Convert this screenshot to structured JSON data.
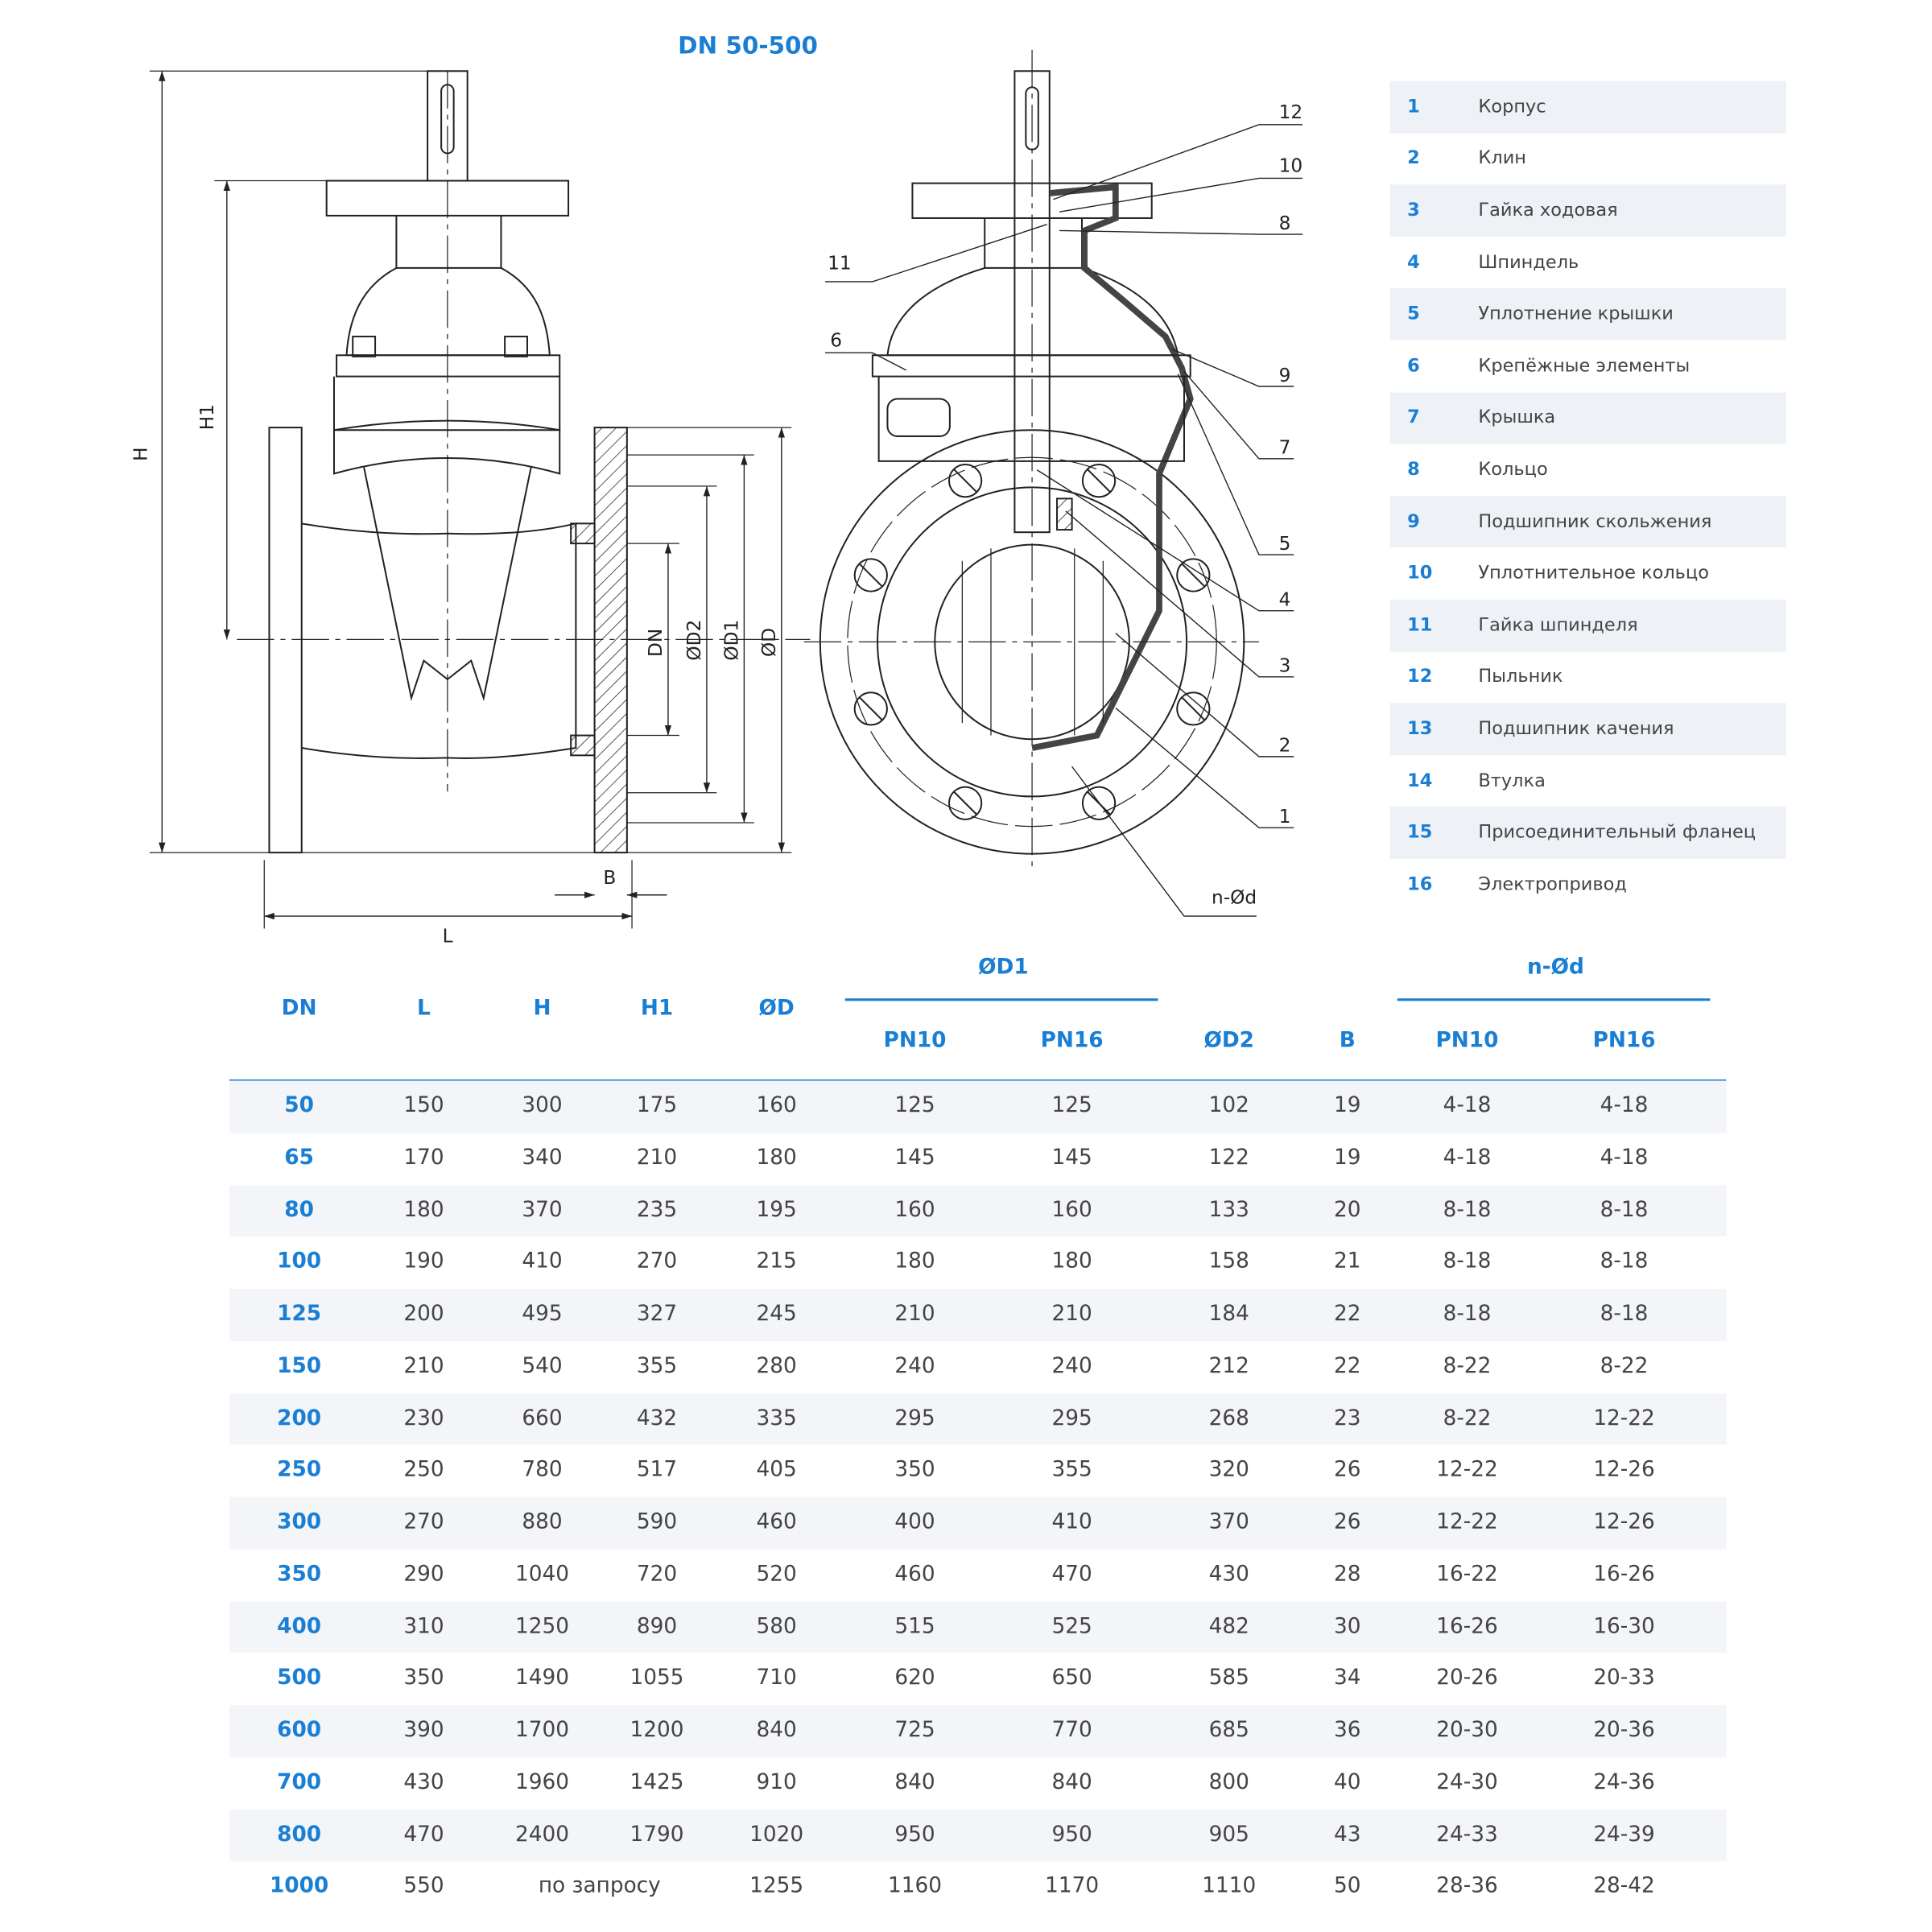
{
  "title": "DN 50-500",
  "parts": [
    {
      "num": "1",
      "name": "Корпус"
    },
    {
      "num": "2",
      "name": "Клин"
    },
    {
      "num": "3",
      "name": "Гайка ходовая"
    },
    {
      "num": "4",
      "name": "Шпиндель"
    },
    {
      "num": "5",
      "name": "Уплотнение крышки"
    },
    {
      "num": "6",
      "name": "Крепёжные элементы"
    },
    {
      "num": "7",
      "name": "Крышка"
    },
    {
      "num": "8",
      "name": "Кольцо"
    },
    {
      "num": "9",
      "name": "Подшипник скольжения"
    },
    {
      "num": "10",
      "name": "Уплотнительное кольцо"
    },
    {
      "num": "11",
      "name": "Гайка шпинделя"
    },
    {
      "num": "12",
      "name": "Пыльник"
    },
    {
      "num": "13",
      "name": "Подшипник качения"
    },
    {
      "num": "14",
      "name": "Втулка"
    },
    {
      "num": "15",
      "name": "Присоединительный фланец"
    },
    {
      "num": "16",
      "name": "Электропривод"
    }
  ],
  "drawing": {
    "dims": {
      "H": "H",
      "H1": "H1",
      "L": "L",
      "B": "B",
      "DN": "DN",
      "D2": "ØD2",
      "D1": "ØD1",
      "D": "ØD",
      "nd": "n-Ød"
    },
    "callouts": [
      "12",
      "10",
      "8",
      "11",
      "6",
      "9",
      "7",
      "5",
      "4",
      "3",
      "2",
      "1"
    ]
  },
  "table": {
    "headers": {
      "dn": "DN",
      "l": "L",
      "h": "H",
      "h1": "H1",
      "d": "ØD",
      "d1": "ØD1",
      "d1_pn10": "PN10",
      "d1_pn16": "PN16",
      "d2": "ØD2",
      "b": "B",
      "nd": "n-Ød",
      "nd_pn10": "PN10",
      "nd_pn16": "PN16"
    },
    "rows": [
      [
        "50",
        "150",
        "300",
        "175",
        "160",
        "125",
        "125",
        "102",
        "19",
        "4-18",
        "4-18"
      ],
      [
        "65",
        "170",
        "340",
        "210",
        "180",
        "145",
        "145",
        "122",
        "19",
        "4-18",
        "4-18"
      ],
      [
        "80",
        "180",
        "370",
        "235",
        "195",
        "160",
        "160",
        "133",
        "20",
        "8-18",
        "8-18"
      ],
      [
        "100",
        "190",
        "410",
        "270",
        "215",
        "180",
        "180",
        "158",
        "21",
        "8-18",
        "8-18"
      ],
      [
        "125",
        "200",
        "495",
        "327",
        "245",
        "210",
        "210",
        "184",
        "22",
        "8-18",
        "8-18"
      ],
      [
        "150",
        "210",
        "540",
        "355",
        "280",
        "240",
        "240",
        "212",
        "22",
        "8-22",
        "8-22"
      ],
      [
        "200",
        "230",
        "660",
        "432",
        "335",
        "295",
        "295",
        "268",
        "23",
        "8-22",
        "12-22"
      ],
      [
        "250",
        "250",
        "780",
        "517",
        "405",
        "350",
        "355",
        "320",
        "26",
        "12-22",
        "12-26"
      ],
      [
        "300",
        "270",
        "880",
        "590",
        "460",
        "400",
        "410",
        "370",
        "26",
        "12-22",
        "12-26"
      ],
      [
        "350",
        "290",
        "1040",
        "720",
        "520",
        "460",
        "470",
        "430",
        "28",
        "16-22",
        "16-26"
      ],
      [
        "400",
        "310",
        "1250",
        "890",
        "580",
        "515",
        "525",
        "482",
        "30",
        "16-26",
        "16-30"
      ],
      [
        "500",
        "350",
        "1490",
        "1055",
        "710",
        "620",
        "650",
        "585",
        "34",
        "20-26",
        "20-33"
      ],
      [
        "600",
        "390",
        "1700",
        "1200",
        "840",
        "725",
        "770",
        "685",
        "36",
        "20-30",
        "20-36"
      ],
      [
        "700",
        "430",
        "1960",
        "1425",
        "910",
        "840",
        "840",
        "800",
        "40",
        "24-30",
        "24-36"
      ],
      [
        "800",
        "470",
        "2400",
        "1790",
        "1020",
        "950",
        "950",
        "905",
        "43",
        "24-33",
        "24-39"
      ],
      [
        "1000",
        "550",
        "по запросу",
        "",
        "1255",
        "1160",
        "1170",
        "1110",
        "50",
        "28-36",
        "28-42"
      ]
    ]
  },
  "colors": {
    "accent": "#1a7fd4",
    "row_shade": "#f3f5f8"
  }
}
